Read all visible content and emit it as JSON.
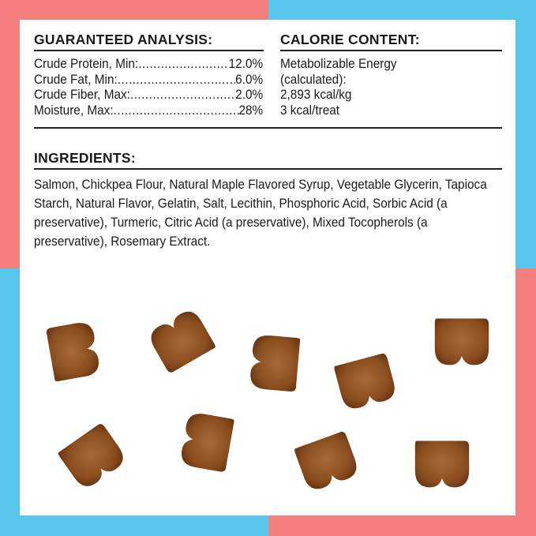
{
  "colors": {
    "pink": "#f47f7f",
    "blue": "#56c6ea",
    "treat": "#8a4a1a"
  },
  "guaranteed_analysis": {
    "heading": "GUARANTEED ANALYSIS:",
    "rows": [
      {
        "label": "Crude Protein, Min:",
        "value": "12.0%"
      },
      {
        "label": "Crude Fat, Min:",
        "value": "6.0%"
      },
      {
        "label": "Crude Fiber, Max:",
        "value": "2.0%"
      },
      {
        "label": "Moisture, Max:",
        "value": "28%"
      }
    ]
  },
  "calorie_content": {
    "heading": "CALORIE CONTENT:",
    "lines": [
      "Metabolizable Energy",
      "(calculated):",
      "2,893 kcal/kg",
      "3 kcal/treat"
    ]
  },
  "ingredients": {
    "heading": "INGREDIENTS:",
    "text": "Salmon, Chickpea Flour, Natural Maple Flavored Syrup, Vegetable Glycerin, Tapioca Starch, Natural Flavor, Gelatin, Salt, Lecithin, Phosphoric Acid, Sorbic Acid (a preservative), Turmeric, Citric Acid (a preservative), Mixed Tocopherols (a preservative), Rosemary Extract."
  },
  "image": {
    "description_icon": "heart-shaped-treats",
    "count": 9
  }
}
